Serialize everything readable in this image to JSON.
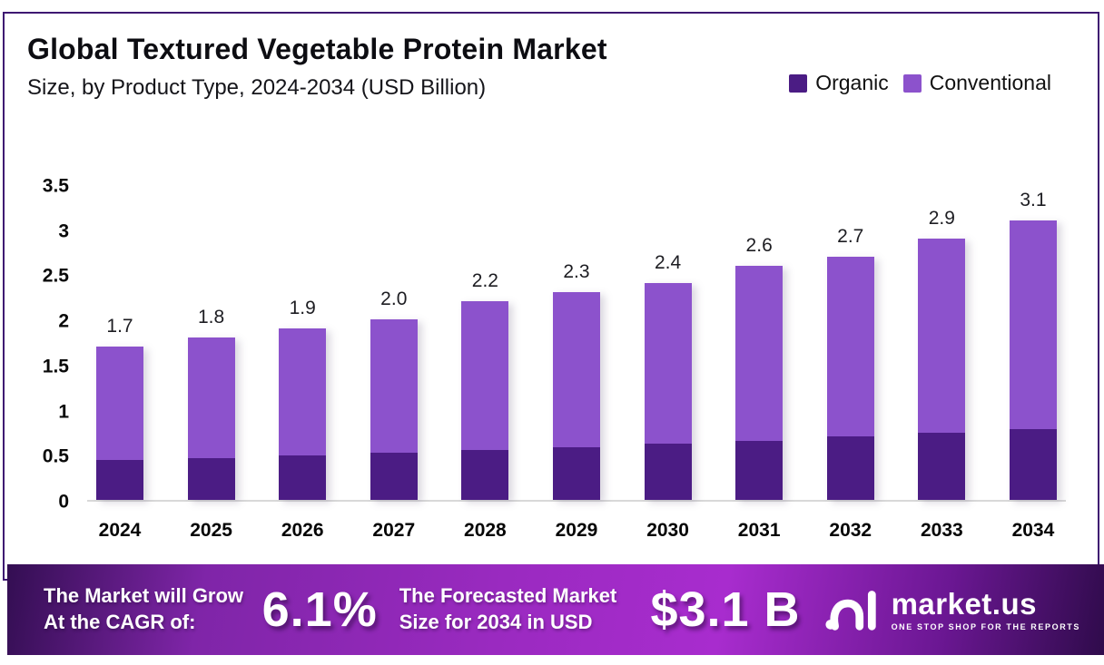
{
  "header": {
    "title": "Global Textured Vegetable Protein Market",
    "subtitle": "Size, by Product Type, 2024-2034 (USD Billion)"
  },
  "legend": [
    {
      "label": "Organic",
      "color": "#4B1C84"
    },
    {
      "label": "Conventional",
      "color": "#8C52CC"
    }
  ],
  "chart_data": {
    "type": "bar",
    "stacked": true,
    "title": "Global Textured Vegetable Protein Market Size, by Product Type, 2024-2034 (USD Billion)",
    "categories": [
      "2024",
      "2025",
      "2026",
      "2027",
      "2028",
      "2029",
      "2030",
      "2031",
      "2032",
      "2033",
      "2034"
    ],
    "series": [
      {
        "name": "Organic",
        "color": "#4B1C84",
        "values": [
          0.44,
          0.46,
          0.49,
          0.52,
          0.55,
          0.58,
          0.62,
          0.65,
          0.7,
          0.74,
          0.78
        ]
      },
      {
        "name": "Conventional",
        "color": "#8C52CC",
        "values": [
          1.26,
          1.34,
          1.41,
          1.48,
          1.65,
          1.72,
          1.78,
          1.95,
          2.0,
          2.16,
          2.32
        ]
      }
    ],
    "totals_labels": [
      "1.7",
      "1.8",
      "1.9",
      "2.0",
      "2.2",
      "2.3",
      "2.4",
      "2.6",
      "2.7",
      "2.9",
      "3.1"
    ],
    "yticks": [
      3.5,
      3,
      2.5,
      2,
      1.5,
      1,
      0.5,
      0
    ],
    "ylim": [
      0,
      3.5
    ],
    "xlabel": "",
    "ylabel": "",
    "grid": false,
    "legend_position": "top-right",
    "axis_line_color": "#d8d8d8"
  },
  "banner": {
    "cagr_line1": "The Market will Grow",
    "cagr_line2": "At the CAGR of:",
    "cagr_value": "6.1%",
    "forecast_line1": "The Forecasted Market",
    "forecast_line2": "Size for 2034 in USD",
    "forecast_value": "$3.1 B",
    "logo_name": "market.us",
    "logo_tagline": "ONE STOP SHOP FOR THE REPORTS"
  },
  "colors": {
    "frame_border": "#3E1872",
    "banner_gradient_start": "#330E52",
    "banner_gradient_mid": "#A82CCE",
    "banner_gradient_end": "#2F0B4B"
  }
}
